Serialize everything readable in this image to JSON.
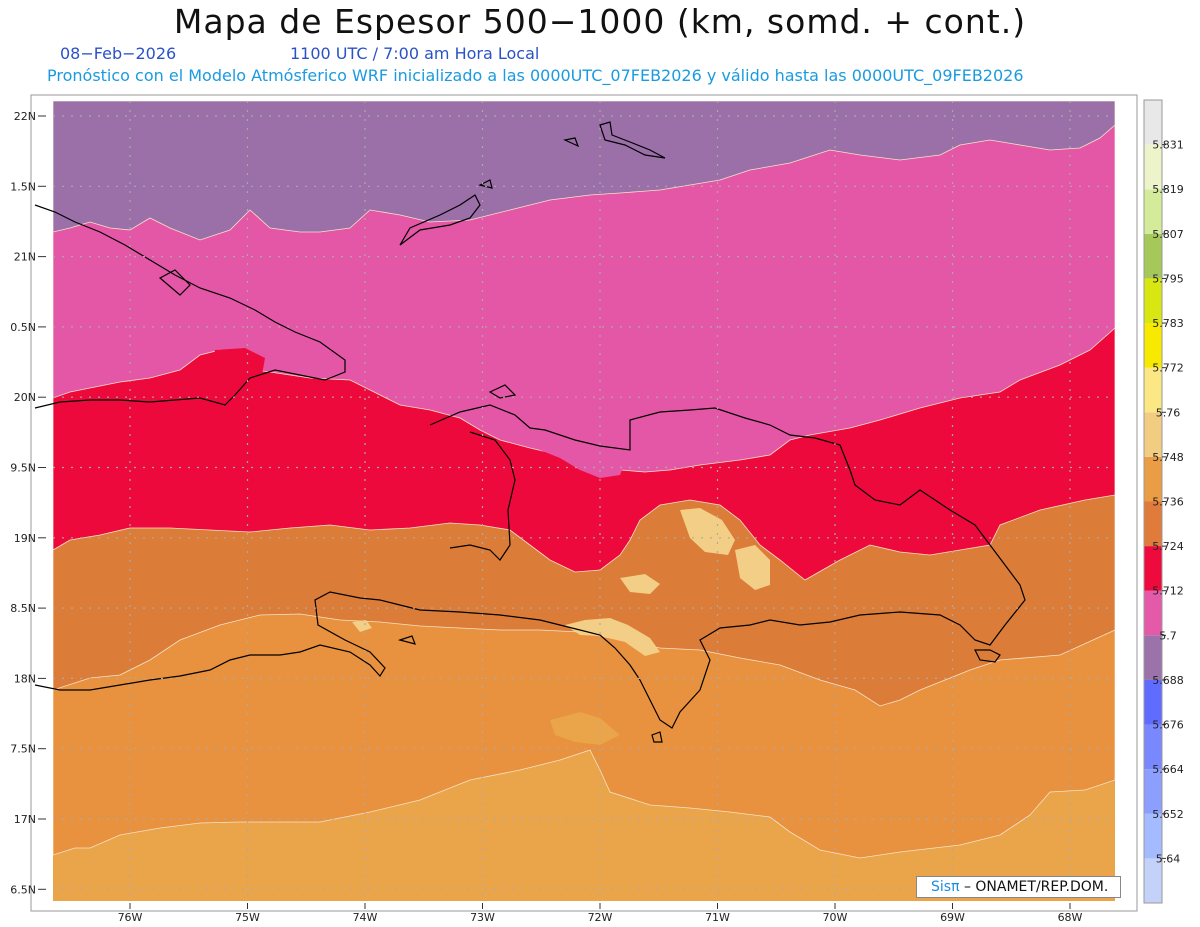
{
  "title": "Mapa de Espesor 500−1000 (km, somd. + cont.)",
  "date": "08−Feb−2026",
  "time": "1100 UTC / 7:00 am Hora Local",
  "forecast_text": "Pronóstico con el Modelo Atmósferico WRF inicializado a las 0000UTC_07FEB2026 y válido hasta las  0000UTC_09FEB2026",
  "credit": {
    "brand": "Sisπ",
    "text": "– ONAMET/REP.DOM."
  },
  "lat_labels": [
    "22N",
    "1.5N",
    "21N",
    "0.5N",
    "20N",
    "9.5N",
    "19N",
    "8.5N",
    "18N",
    "7.5N",
    "17N",
    "6.5N"
  ],
  "lon_labels": [
    "76W",
    "75W",
    "74W",
    "73W",
    "72W",
    "71W",
    "70W",
    "69W",
    "68W"
  ],
  "colorbar": {
    "labels": [
      "5.64",
      "5.652",
      "5.664",
      "5.676",
      "5.688",
      "5.7",
      "5.712",
      "5.724",
      "5.736",
      "5.748",
      "5.76",
      "5.772",
      "5.783",
      "5.795",
      "5.807",
      "5.819",
      "5.831"
    ],
    "colors": [
      "#c4d2fa",
      "#a4bbff",
      "#8c9fff",
      "#7a88ff",
      "#5f6cff",
      "#9b72aa",
      "#e45aa8",
      "#ee0a3c",
      "#e07b3c",
      "#ea9d45",
      "#f2cc80",
      "#fbe884",
      "#f8e900",
      "#d8e612",
      "#a6c85a",
      "#d4ec9a",
      "#eef4c9",
      "#e8e8e8"
    ]
  },
  "map": {
    "fill_colors": {
      "purple": "#9b6fa8",
      "pink": "#e457a6",
      "red": "#ee093d",
      "brown": "#dc7c39",
      "orange": "#e8913e",
      "light_orange": "#eaa449",
      "cream": "#f3ce86",
      "coast": "#000000"
    }
  }
}
